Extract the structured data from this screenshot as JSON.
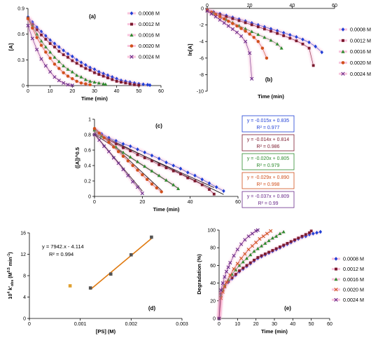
{
  "colors": {
    "0.0008 M": "#1f3fd6",
    "0.0012 M": "#7b1a2e",
    "0.0016 M": "#2e8b2e",
    "0.0020 M": "#d1501c",
    "0.0024 M": "#6a2a8a",
    "pink_halo": "#f4a0c8",
    "fit_line": "#000000",
    "fit_orange": "#e07a10",
    "fit_box_colors": [
      "#1f3fd6",
      "#7b1a2e",
      "#2e8b2e",
      "#d1501c",
      "#6a2a8a"
    ]
  },
  "chart_data": [
    {
      "panel": "(a)",
      "type": "scatter",
      "xlabel": "Time (min)",
      "ylabel": "[A]",
      "xlim": [
        0,
        60
      ],
      "ylim": [
        0,
        0.9
      ],
      "xticks": [
        0,
        10,
        20,
        30,
        40,
        50,
        60
      ],
      "yticks": [
        0,
        0.3,
        0.6,
        0.9
      ],
      "ytick_labels": [
        "0",
        "0.3",
        "0.6",
        "0.9"
      ],
      "legend": "right",
      "series": [
        {
          "name": "0.0008 M",
          "marker": "diamond",
          "x": [
            0,
            2,
            4,
            6,
            8,
            10,
            12,
            14,
            16,
            18,
            20,
            22,
            24,
            26,
            28,
            30,
            32,
            34,
            36,
            38,
            40,
            42,
            44,
            46,
            48,
            50,
            52,
            54,
            55
          ],
          "y": [
            0.8,
            0.74,
            0.68,
            0.63,
            0.58,
            0.53,
            0.49,
            0.45,
            0.41,
            0.37,
            0.34,
            0.3,
            0.27,
            0.24,
            0.21,
            0.19,
            0.16,
            0.14,
            0.12,
            0.1,
            0.08,
            0.06,
            0.05,
            0.04,
            0.03,
            0.02,
            0.015,
            0.01,
            0.005
          ]
        },
        {
          "name": "0.0012 M",
          "marker": "square",
          "x": [
            0,
            2,
            4,
            6,
            8,
            10,
            12,
            14,
            16,
            18,
            20,
            22,
            24,
            26,
            28,
            30,
            32,
            34,
            36,
            38,
            40,
            42,
            44,
            46,
            48,
            50
          ],
          "y": [
            0.79,
            0.71,
            0.65,
            0.59,
            0.54,
            0.49,
            0.45,
            0.4,
            0.36,
            0.33,
            0.29,
            0.26,
            0.23,
            0.2,
            0.18,
            0.15,
            0.13,
            0.11,
            0.09,
            0.07,
            0.05,
            0.04,
            0.03,
            0.02,
            0.01,
            0.005
          ]
        },
        {
          "name": "0.0016 M",
          "marker": "triangle",
          "x": [
            0,
            2,
            4,
            6,
            8,
            10,
            12,
            14,
            16,
            18,
            20,
            22,
            24,
            26,
            28,
            30,
            32,
            34,
            35
          ],
          "y": [
            0.79,
            0.69,
            0.6,
            0.52,
            0.45,
            0.39,
            0.33,
            0.28,
            0.23,
            0.19,
            0.16,
            0.12,
            0.1,
            0.07,
            0.05,
            0.04,
            0.03,
            0.02,
            0.015
          ]
        },
        {
          "name": "0.0020 M",
          "marker": "circle",
          "x": [
            0,
            2,
            4,
            6,
            8,
            10,
            12,
            14,
            16,
            18,
            20,
            22,
            24,
            26,
            28
          ],
          "y": [
            0.78,
            0.67,
            0.56,
            0.47,
            0.39,
            0.32,
            0.25,
            0.2,
            0.15,
            0.11,
            0.08,
            0.05,
            0.03,
            0.02,
            0.01
          ]
        },
        {
          "name": "0.0024 M",
          "marker": "x",
          "x": [
            0,
            2,
            4,
            6,
            8,
            10,
            12,
            14,
            16,
            18,
            20
          ],
          "y": [
            0.7,
            0.55,
            0.42,
            0.31,
            0.23,
            0.16,
            0.1,
            0.06,
            0.03,
            0.01,
            0.003
          ]
        }
      ]
    },
    {
      "panel": "(b)",
      "type": "scatter",
      "xlabel": "Time (min)",
      "ylabel": "ln[A]",
      "xlim": [
        0,
        60
      ],
      "ylim": [
        -10,
        0
      ],
      "xticks": [
        0,
        20,
        40,
        60
      ],
      "yticks": [
        0,
        -2,
        -4,
        -6,
        -8,
        -10
      ],
      "legend": "right",
      "series": [
        {
          "name": "0.0008 M",
          "marker": "diamond",
          "x": [
            0,
            3,
            6,
            9,
            12,
            15,
            18,
            21,
            24,
            27,
            30,
            33,
            36,
            39,
            42,
            45,
            48,
            51,
            54
          ],
          "y": [
            -0.2,
            -0.42,
            -0.64,
            -0.86,
            -1.08,
            -1.3,
            -1.53,
            -1.76,
            -2.0,
            -2.23,
            -2.47,
            -2.7,
            -2.95,
            -3.2,
            -3.45,
            -3.75,
            -4.1,
            -4.6,
            -5.3
          ]
        },
        {
          "name": "0.0012 M",
          "marker": "square",
          "x": [
            0,
            3,
            6,
            9,
            12,
            15,
            18,
            21,
            24,
            27,
            30,
            33,
            36,
            39,
            42,
            45,
            48,
            50
          ],
          "y": [
            -0.25,
            -0.5,
            -0.75,
            -1.0,
            -1.24,
            -1.48,
            -1.73,
            -1.98,
            -2.23,
            -2.49,
            -2.75,
            -3.02,
            -3.3,
            -3.6,
            -3.92,
            -4.3,
            -4.8,
            -6.9
          ]
        },
        {
          "name": "0.0016 M",
          "marker": "triangle",
          "x": [
            0,
            3,
            6,
            9,
            12,
            15,
            18,
            21,
            24,
            27,
            30,
            33,
            35
          ],
          "y": [
            -0.2,
            -0.6,
            -0.98,
            -1.35,
            -1.72,
            -2.1,
            -2.45,
            -2.8,
            -3.15,
            -3.5,
            -3.85,
            -4.3,
            -4.8
          ]
        },
        {
          "name": "0.0020 M",
          "marker": "circle",
          "x": [
            0,
            2,
            4,
            6,
            8,
            10,
            12,
            14,
            16,
            18,
            20,
            22,
            24,
            26,
            28
          ],
          "y": [
            -0.2,
            -0.45,
            -0.72,
            -1.0,
            -1.27,
            -1.55,
            -1.83,
            -2.12,
            -2.42,
            -2.75,
            -3.1,
            -3.5,
            -4.0,
            -4.8,
            -6.0
          ]
        },
        {
          "name": "0.0024 M",
          "marker": "x",
          "x": [
            0,
            2,
            4,
            6,
            8,
            10,
            12,
            14,
            16,
            18,
            20,
            21
          ],
          "y": [
            -0.3,
            -0.65,
            -1.0,
            -1.38,
            -1.75,
            -2.12,
            -2.5,
            -2.9,
            -3.35,
            -4.0,
            -5.4,
            -8.5
          ]
        }
      ]
    },
    {
      "panel": "(c)",
      "type": "scatter",
      "xlabel": "Time (min)",
      "ylabel": "([A])^0.5",
      "xlim": [
        0,
        60
      ],
      "ylim": [
        0,
        1
      ],
      "xticks": [
        0,
        20,
        40,
        60
      ],
      "yticks": [
        0,
        0.2,
        0.4,
        0.6,
        0.8,
        1
      ],
      "ytick_labels": [
        "0",
        "0.2",
        "0.4",
        "0.6",
        "0.8",
        "1"
      ],
      "legend": "right",
      "series": [
        {
          "name": "0.0008 M",
          "marker": "diamond",
          "x": [
            0,
            3,
            6,
            9,
            12,
            15,
            18,
            21,
            24,
            27,
            30,
            33,
            36,
            39,
            42,
            45,
            48,
            51,
            54
          ],
          "y": [
            0.87,
            0.81,
            0.76,
            0.72,
            0.68,
            0.65,
            0.61,
            0.57,
            0.53,
            0.49,
            0.44,
            0.4,
            0.36,
            0.31,
            0.27,
            0.22,
            0.17,
            0.12,
            0.07
          ]
        },
        {
          "name": "0.0012 M",
          "marker": "square",
          "x": [
            0,
            3,
            6,
            9,
            12,
            15,
            18,
            21,
            24,
            27,
            30,
            33,
            36,
            39,
            42,
            45,
            48,
            50
          ],
          "y": [
            0.86,
            0.79,
            0.73,
            0.68,
            0.63,
            0.59,
            0.54,
            0.5,
            0.46,
            0.41,
            0.37,
            0.33,
            0.29,
            0.24,
            0.2,
            0.15,
            0.09,
            0.03
          ]
        },
        {
          "name": "0.0016 M",
          "marker": "triangle",
          "x": [
            0,
            3,
            6,
            9,
            12,
            15,
            18,
            21,
            24,
            27,
            30,
            33,
            35
          ],
          "y": [
            0.86,
            0.78,
            0.71,
            0.64,
            0.57,
            0.51,
            0.45,
            0.39,
            0.33,
            0.27,
            0.21,
            0.15,
            0.1
          ]
        },
        {
          "name": "0.0020 M",
          "marker": "circle",
          "x": [
            0,
            2,
            4,
            6,
            8,
            10,
            12,
            14,
            16,
            18,
            20,
            22,
            24,
            26,
            28
          ],
          "y": [
            0.88,
            0.82,
            0.76,
            0.7,
            0.64,
            0.58,
            0.52,
            0.46,
            0.4,
            0.34,
            0.28,
            0.22,
            0.16,
            0.11,
            0.06
          ]
        },
        {
          "name": "0.0024 M",
          "marker": "x",
          "x": [
            0,
            2,
            4,
            6,
            8,
            10,
            12,
            14,
            16,
            18,
            20
          ],
          "y": [
            0.8,
            0.73,
            0.65,
            0.58,
            0.5,
            0.43,
            0.35,
            0.27,
            0.19,
            0.12,
            0.04
          ]
        }
      ],
      "fits": [
        {
          "equation": "y = -0.015x + 0.835",
          "r2": "R² = 0.977",
          "slope": -0.015,
          "intercept": 0.835,
          "x_end": 54
        },
        {
          "equation": "y = -0.014x + 0.814",
          "r2": "R² = 0.986",
          "slope": -0.014,
          "intercept": 0.814,
          "x_end": 50
        },
        {
          "equation": "y = -0.020x + 0.805",
          "r2": "R² = 0.979",
          "slope": -0.02,
          "intercept": 0.805,
          "x_end": 35
        },
        {
          "equation": "y = -0.029x + 0.890",
          "r2": "R² = 0.998",
          "slope": -0.029,
          "intercept": 0.89,
          "x_end": 28
        },
        {
          "equation": "y = -0.037x + 0.809",
          "r2": "R² = 0.99",
          "slope": -0.037,
          "intercept": 0.809,
          "x_end": 20
        }
      ]
    },
    {
      "panel": "(d)",
      "type": "line",
      "xlabel": "[PS] (M)",
      "ylabel": "10⁴ k'obs (M^0.5 min⁻¹)",
      "ylabel_main": "10",
      "ylabel_sup1": "4",
      "ylabel_k": " k'",
      "ylabel_sub": "obs",
      "ylabel_units": " (M",
      "ylabel_sup2": "0.5",
      "ylabel_min": " min",
      "ylabel_sup3": "-1",
      "ylabel_close": ")",
      "xlim": [
        0,
        0.003
      ],
      "ylim": [
        0,
        16
      ],
      "xticks": [
        0,
        0.001,
        0.002,
        0.003
      ],
      "xtick_labels": [
        "0",
        "0.001",
        "0.002",
        "0.003"
      ],
      "yticks": [
        0,
        4,
        8,
        12,
        16
      ],
      "fit_equation": "y = 7942.x - 4.114",
      "fit_r2": "R² = 0.994",
      "fit_slope": 7942,
      "fit_intercept": -4.114,
      "fit_x": [
        0.0012,
        0.0024
      ],
      "series": [
        {
          "name": "data",
          "marker": "square",
          "x": [
            0.0008,
            0.0012,
            0.0016,
            0.002,
            0.0024
          ],
          "y": [
            6.1,
            5.7,
            8.3,
            11.9,
            15.2
          ]
        }
      ]
    },
    {
      "panel": "(e)",
      "type": "scatter",
      "xlabel": "Time (min)",
      "ylabel": "Degradation (%)",
      "xlim": [
        0,
        60
      ],
      "ylim": [
        0,
        100
      ],
      "xticks": [
        0,
        10,
        20,
        30,
        40,
        50,
        60
      ],
      "yticks": [
        0,
        20,
        40,
        60,
        80,
        100
      ],
      "legend": "right",
      "series": [
        {
          "name": "0.0008 M",
          "marker": "diamond",
          "x": [
            0,
            1,
            2,
            3,
            5,
            7,
            9,
            11,
            13,
            15,
            17,
            19,
            21,
            23,
            25,
            27,
            29,
            31,
            33,
            35,
            37,
            39,
            41,
            43,
            45,
            47,
            49,
            51,
            53,
            55
          ],
          "y": [
            0,
            27,
            33,
            36,
            41,
            45,
            49,
            53,
            56,
            59,
            62,
            65,
            68,
            70,
            72,
            74,
            76,
            78,
            80,
            82,
            84,
            86,
            88,
            90,
            92,
            93,
            95,
            96,
            97,
            98
          ]
        },
        {
          "name": "0.0012 M",
          "marker": "square",
          "x": [
            0,
            1,
            2,
            3,
            5,
            7,
            9,
            11,
            13,
            15,
            17,
            19,
            21,
            23,
            25,
            27,
            29,
            31,
            33,
            35,
            37,
            39,
            41,
            43,
            45,
            47,
            49,
            50
          ],
          "y": [
            0,
            28,
            33,
            37,
            42,
            46,
            50,
            54,
            57,
            60,
            63,
            66,
            69,
            71,
            73,
            75,
            77,
            79,
            81,
            83,
            85,
            87,
            89,
            91,
            93,
            95,
            97,
            99
          ]
        },
        {
          "name": "0.0016 M",
          "marker": "triangle",
          "x": [
            0,
            1,
            2,
            3,
            5,
            7,
            9,
            11,
            13,
            15,
            17,
            19,
            21,
            23,
            25,
            27,
            29,
            31,
            33,
            35
          ],
          "y": [
            0,
            26,
            32,
            37,
            44,
            50,
            55,
            60,
            64,
            68,
            72,
            76,
            79,
            82,
            85,
            88,
            91,
            93,
            96,
            98
          ]
        },
        {
          "name": "0.0020 M",
          "marker": "x",
          "x": [
            0,
            1,
            2,
            3,
            4,
            6,
            8,
            10,
            12,
            14,
            16,
            18,
            20,
            22,
            24,
            26,
            28
          ],
          "y": [
            0,
            23,
            30,
            36,
            41,
            49,
            56,
            62,
            68,
            73,
            78,
            82,
            86,
            90,
            93,
            96,
            99
          ]
        },
        {
          "name": "0.0024 M",
          "marker": "x",
          "x": [
            0,
            1,
            2,
            3,
            4,
            5,
            6,
            8,
            10,
            12,
            14,
            16,
            18,
            20,
            21
          ],
          "y": [
            0,
            32,
            40,
            47,
            53,
            58,
            63,
            71,
            78,
            84,
            89,
            93,
            96,
            99,
            100
          ]
        }
      ]
    }
  ]
}
